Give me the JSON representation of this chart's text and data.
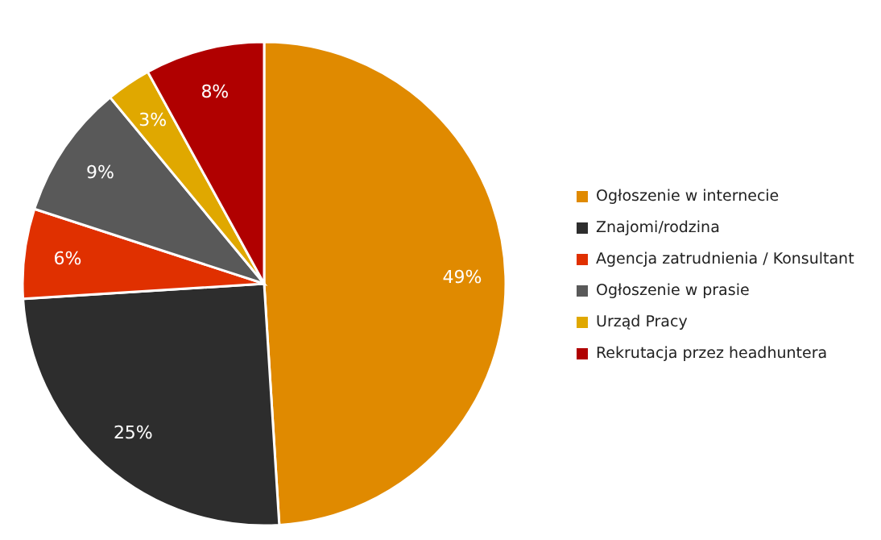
{
  "chart_data": {
    "type": "pie",
    "categories": [
      "Ogłoszenie w internecie",
      "Znajomi/rodzina",
      "Agencja zatrudnienia / Konsultant",
      "Ogłoszenie w prasie",
      "Urząd Pracy",
      "Rekrutacja przez headhuntera"
    ],
    "values": [
      49,
      25,
      6,
      9,
      3,
      8
    ],
    "value_labels": [
      "49%",
      "25%",
      "6%",
      "9%",
      "3%",
      "8%"
    ],
    "colors": [
      "#e08a00",
      "#2d2d2d",
      "#e03000",
      "#595959",
      "#e0a800",
      "#b00000"
    ],
    "legend": "right"
  }
}
